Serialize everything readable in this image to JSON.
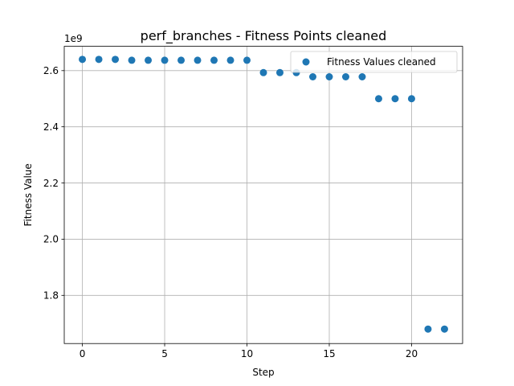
{
  "chart_data": {
    "type": "scatter",
    "title": "perf_branches - Fitness Points cleaned",
    "xlabel": "Step",
    "ylabel": "Fitness Value",
    "y_offset_label": "1e9",
    "xlim": [
      -1.1,
      23.1
    ],
    "ylim": [
      1.6285,
      2.6865
    ],
    "x_ticks": [
      0,
      5,
      10,
      15,
      20
    ],
    "y_ticks": [
      1.8,
      2.0,
      2.2,
      2.4,
      2.6
    ],
    "y_tick_labels": [
      "1.8",
      "2.0",
      "2.2",
      "2.4",
      "2.6"
    ],
    "grid": true,
    "legend_position": "top-right",
    "series": [
      {
        "name": "Fitness Values cleaned",
        "color": "#1f77b4",
        "x": [
          0,
          1,
          2,
          3,
          4,
          5,
          6,
          7,
          8,
          9,
          10,
          11,
          12,
          13,
          14,
          15,
          16,
          17,
          18,
          19,
          20,
          21,
          22
        ],
        "y": [
          2.64,
          2.64,
          2.64,
          2.637,
          2.637,
          2.637,
          2.637,
          2.637,
          2.637,
          2.637,
          2.637,
          2.593,
          2.593,
          2.593,
          2.578,
          2.578,
          2.578,
          2.578,
          2.5,
          2.5,
          2.5,
          1.68,
          1.68
        ]
      }
    ]
  }
}
